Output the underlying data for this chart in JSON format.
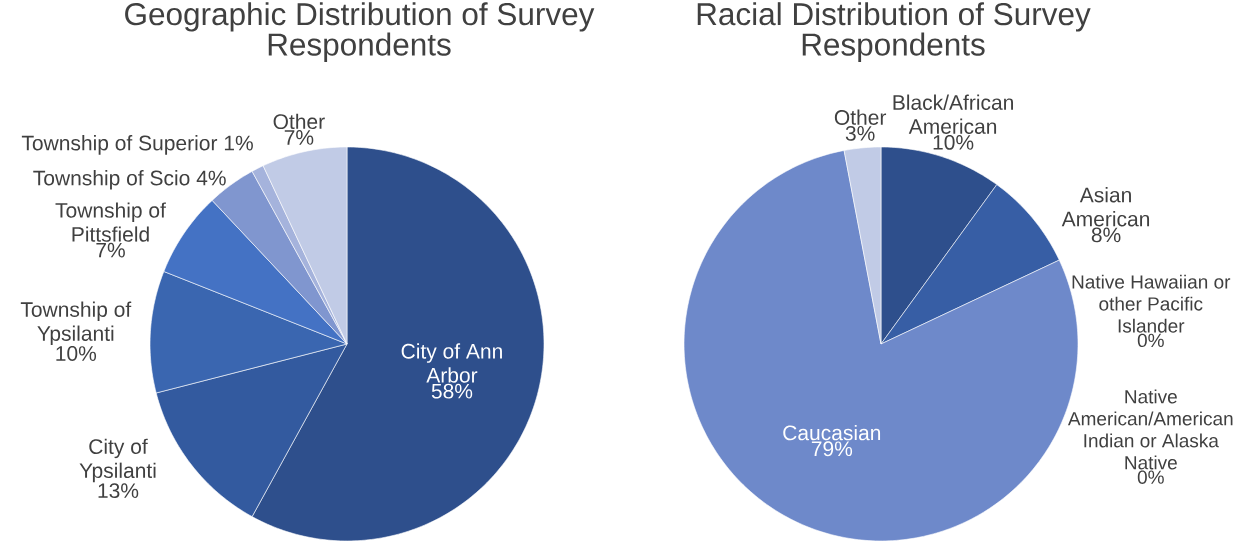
{
  "chart_data": [
    {
      "type": "pie",
      "title": "Geographic Distribution of Survey Respondents",
      "categories": [
        "City of Ann Arbor",
        "City of Ypsilanti",
        "Township of Ypsilanti",
        "Township of Pittsfield",
        "Township of Scio",
        "Township of Superior",
        "Other"
      ],
      "values": [
        58,
        13,
        10,
        7,
        4,
        1,
        7
      ],
      "value_labels": [
        "58%",
        "13%",
        "10%",
        "7%",
        "4%",
        "1%",
        "7%"
      ],
      "colors": [
        "#2e4f8c",
        "#335a9f",
        "#3a66b0",
        "#4472c4",
        "#8096cf",
        "#a5b3dc",
        "#c1cbe6"
      ]
    },
    {
      "type": "pie",
      "title": "Racial Distribution of Survey Respondents",
      "categories": [
        "Black/African American",
        "Asian American",
        "Native Hawaiian or other Pacific Islander",
        "Native American/American Indian or Alaska Native",
        "Caucasian",
        "Other"
      ],
      "values": [
        10,
        8,
        0,
        0,
        79,
        3
      ],
      "value_labels": [
        "10%",
        "8%",
        "0%",
        "0%",
        "79%",
        "3%"
      ],
      "colors": [
        "#2e4f8c",
        "#375ea5",
        "#4472c4",
        "#5b7bc0",
        "#6e89ca",
        "#c1cbe6"
      ]
    }
  ]
}
